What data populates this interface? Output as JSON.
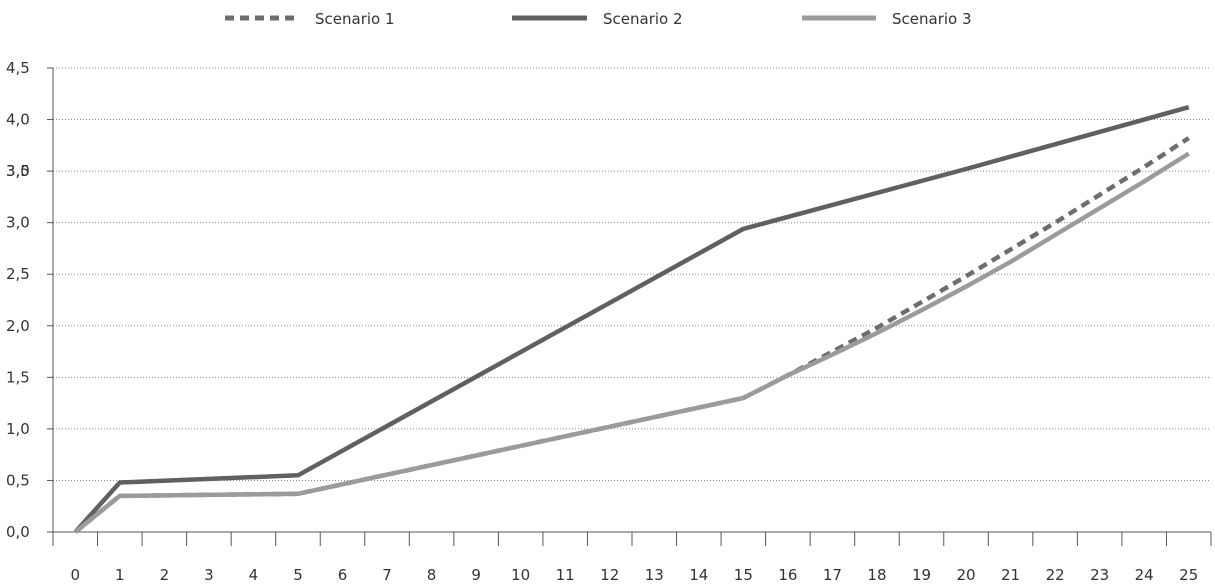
{
  "chart_data": {
    "type": "line",
    "x": [
      0,
      1,
      5,
      15,
      25
    ],
    "x_ticks": [
      "0",
      "1",
      "2",
      "3",
      "4",
      "5",
      "6",
      "7",
      "8",
      "9",
      "10",
      "11",
      "12",
      "13",
      "14",
      "15",
      "16",
      "17",
      "18",
      "19",
      "20",
      "21",
      "22",
      "23",
      "24",
      "25"
    ],
    "y_ticks": [
      "0,0",
      "0,5",
      "1,0",
      "1,5",
      "2,0",
      "2,5",
      "3,0",
      "3,5",
      "4,0",
      "4,5"
    ],
    "y_tick_values": [
      0,
      0.5,
      1.0,
      1.5,
      2.0,
      2.5,
      3.0,
      3.5,
      4.0,
      4.5
    ],
    "overlap_label": "3,0",
    "xlim": [
      0,
      25
    ],
    "ylim": [
      0,
      4.5
    ],
    "grid": "horizontal-dotted",
    "legend_position": "top",
    "series": [
      {
        "name": "Scenario 1",
        "color": "#6d6d6d",
        "style": "dashed",
        "points": [
          [
            0,
            0
          ],
          [
            1,
            0.35
          ],
          [
            5,
            0.37
          ],
          [
            15,
            1.3
          ],
          [
            16,
            1.52
          ],
          [
            17,
            1.75
          ],
          [
            18,
            1.98
          ],
          [
            19,
            2.23
          ],
          [
            20,
            2.48
          ],
          [
            21,
            2.74
          ],
          [
            22,
            3.0
          ],
          [
            23,
            3.27
          ],
          [
            24,
            3.54
          ],
          [
            25,
            3.82
          ]
        ]
      },
      {
        "name": "Scenario 2",
        "color": "#606060",
        "style": "solid",
        "points": [
          [
            0,
            0
          ],
          [
            1,
            0.48
          ],
          [
            5,
            0.55
          ],
          [
            15,
            2.94
          ],
          [
            20,
            3.52
          ],
          [
            25,
            4.12
          ]
        ]
      },
      {
        "name": "Scenario 3",
        "color": "#9b9b9b",
        "style": "solid",
        "points": [
          [
            0,
            0
          ],
          [
            1,
            0.35
          ],
          [
            5,
            0.37
          ],
          [
            15,
            1.3
          ],
          [
            16,
            1.52
          ],
          [
            17,
            1.72
          ],
          [
            18,
            1.93
          ],
          [
            19,
            2.15
          ],
          [
            20,
            2.38
          ],
          [
            21,
            2.62
          ],
          [
            22,
            2.88
          ],
          [
            23,
            3.14
          ],
          [
            24,
            3.4
          ],
          [
            25,
            3.67
          ]
        ]
      }
    ]
  }
}
